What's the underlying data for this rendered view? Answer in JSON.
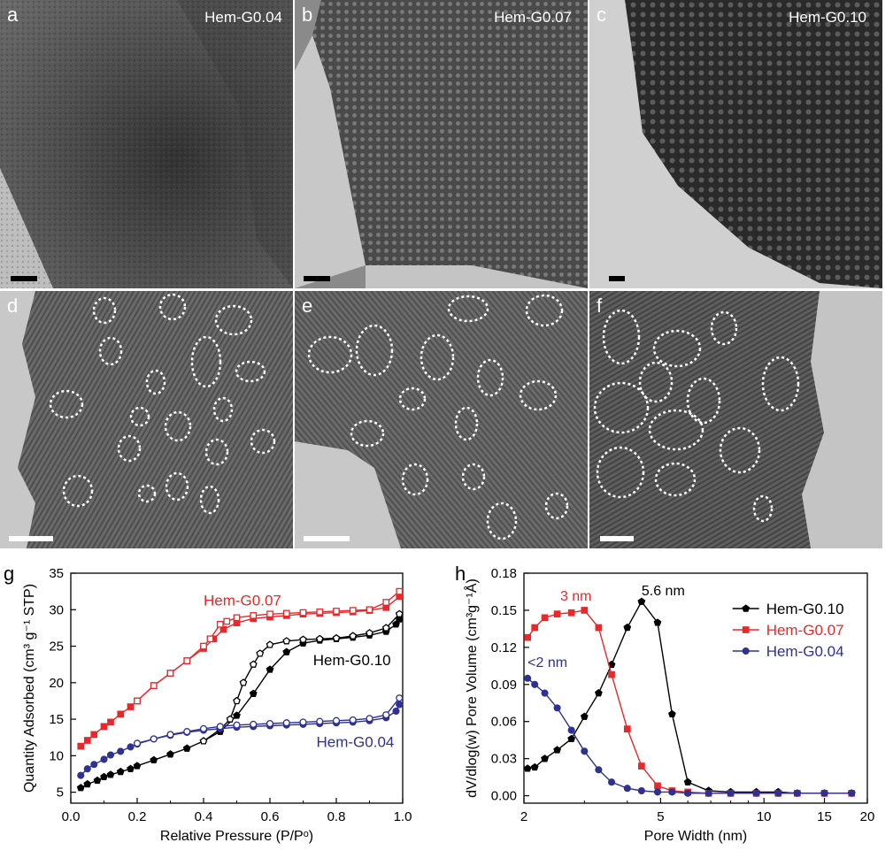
{
  "panels": [
    {
      "label": "a",
      "title": "Hem-G0.04"
    },
    {
      "label": "b",
      "title": "Hem-G0.07"
    },
    {
      "label": "c",
      "title": "Hem-G0.10"
    },
    {
      "label": "d",
      "title": ""
    },
    {
      "label": "e",
      "title": ""
    },
    {
      "label": "f",
      "title": ""
    }
  ],
  "colors": {
    "black": "#000000",
    "red": "#e8282a",
    "blue": "#2e3192"
  },
  "chart_data": [
    {
      "type": "line",
      "panel_label": "g",
      "xlabel": "Relative Pressure (P/Pᵒ)",
      "ylabel": "Quantity Adsorbed (cm³ g⁻¹ STP)",
      "xlim": [
        0,
        1.0
      ],
      "ylim": [
        3.5,
        35
      ],
      "xticks": [
        "0.0",
        "0.2",
        "0.4",
        "0.6",
        "0.8",
        "1.0"
      ],
      "yticks": [
        "5",
        "10",
        "15",
        "20",
        "25",
        "30",
        "35"
      ],
      "annotations": [
        "Hem-G0.07",
        "Hem-G0.10",
        "Hem-G0.04"
      ],
      "series": [
        {
          "name": "Hem-G0.07",
          "color": "#e8282a",
          "marker": "square",
          "branch": "adsorption",
          "x": [
            0.03,
            0.05,
            0.07,
            0.1,
            0.12,
            0.15,
            0.18,
            0.2,
            0.25,
            0.3,
            0.35,
            0.4,
            0.43,
            0.46,
            0.5,
            0.55,
            0.6,
            0.65,
            0.7,
            0.75,
            0.8,
            0.85,
            0.9,
            0.95,
            0.99
          ],
          "y": [
            11.3,
            12.1,
            12.9,
            14.0,
            14.6,
            15.7,
            16.7,
            17.5,
            19.6,
            21.3,
            23.0,
            24.7,
            26.0,
            27.3,
            28.2,
            28.8,
            29.0,
            29.2,
            29.4,
            29.5,
            29.6,
            29.7,
            29.9,
            30.3,
            31.8
          ]
        },
        {
          "name": "Hem-G0.07",
          "color": "#e8282a",
          "marker": "square-open",
          "branch": "desorption",
          "x": [
            0.99,
            0.95,
            0.9,
            0.85,
            0.8,
            0.75,
            0.7,
            0.65,
            0.6,
            0.55,
            0.5,
            0.47,
            0.45,
            0.42,
            0.4,
            0.35,
            0.3,
            0.25,
            0.2
          ],
          "y": [
            32.5,
            31.0,
            30.0,
            29.9,
            29.8,
            29.7,
            29.6,
            29.5,
            29.4,
            29.2,
            28.9,
            28.4,
            28.0,
            26.0,
            25.0,
            23.0,
            21.3,
            19.6,
            17.5
          ]
        },
        {
          "name": "Hem-G0.10",
          "color": "#000000",
          "marker": "pentagon",
          "branch": "adsorption",
          "x": [
            0.03,
            0.05,
            0.08,
            0.1,
            0.12,
            0.15,
            0.18,
            0.2,
            0.25,
            0.3,
            0.35,
            0.4,
            0.45,
            0.5,
            0.55,
            0.6,
            0.65,
            0.7,
            0.75,
            0.8,
            0.85,
            0.9,
            0.95,
            0.98,
            0.99
          ],
          "y": [
            5.6,
            6.1,
            6.6,
            7.1,
            7.4,
            7.8,
            8.2,
            8.6,
            9.4,
            10.2,
            11.0,
            12.0,
            13.3,
            15.5,
            18.5,
            21.8,
            24.2,
            25.4,
            25.8,
            26.0,
            26.2,
            26.5,
            27.0,
            28.0,
            28.7
          ]
        },
        {
          "name": "Hem-G0.10",
          "color": "#000000",
          "marker": "pentagon-open",
          "branch": "desorption",
          "x": [
            0.99,
            0.95,
            0.9,
            0.85,
            0.8,
            0.75,
            0.7,
            0.65,
            0.6,
            0.57,
            0.55,
            0.52,
            0.5,
            0.48,
            0.45,
            0.4
          ],
          "y": [
            29.4,
            27.5,
            26.8,
            26.4,
            26.1,
            26.0,
            25.9,
            25.7,
            25.2,
            24.0,
            22.5,
            20.0,
            17.5,
            15.0,
            13.6,
            12.0
          ]
        },
        {
          "name": "Hem-G0.04",
          "color": "#2e3192",
          "marker": "circle",
          "branch": "adsorption",
          "x": [
            0.03,
            0.05,
            0.07,
            0.1,
            0.12,
            0.15,
            0.18,
            0.2,
            0.25,
            0.3,
            0.35,
            0.4,
            0.45,
            0.5,
            0.55,
            0.6,
            0.65,
            0.7,
            0.75,
            0.8,
            0.85,
            0.9,
            0.95,
            0.98,
            0.99
          ],
          "y": [
            7.3,
            8.2,
            8.8,
            9.5,
            10.1,
            10.6,
            11.2,
            11.6,
            12.3,
            12.8,
            13.2,
            13.5,
            13.7,
            13.9,
            14.0,
            14.1,
            14.2,
            14.3,
            14.4,
            14.5,
            14.6,
            14.8,
            15.2,
            16.1,
            17.0
          ]
        },
        {
          "name": "Hem-G0.04",
          "color": "#2e3192",
          "marker": "circle-open",
          "branch": "desorption",
          "x": [
            0.99,
            0.95,
            0.9,
            0.85,
            0.8,
            0.75,
            0.7,
            0.65,
            0.6,
            0.55,
            0.5,
            0.45,
            0.4,
            0.35,
            0.3,
            0.25,
            0.2
          ],
          "y": [
            17.9,
            15.6,
            15.1,
            14.9,
            14.8,
            14.7,
            14.6,
            14.5,
            14.4,
            14.3,
            14.2,
            14.0,
            13.7,
            13.3,
            12.9,
            12.3,
            11.7
          ]
        }
      ]
    },
    {
      "type": "line",
      "panel_label": "h",
      "xlabel": "Pore Width (nm)",
      "ylabel": "dV/dlog(w) Pore Volume (cm³g⁻¹Å)",
      "xscale": "log",
      "xlim": [
        2,
        20
      ],
      "ylim": [
        -0.006,
        0.18
      ],
      "xticks": [
        "2",
        "5",
        "10",
        "15",
        "20"
      ],
      "yticks": [
        "0.00",
        "0.03",
        "0.06",
        "0.09",
        "0.12",
        "0.15",
        "0.18"
      ],
      "annotations": [
        "3 nm",
        "5.6 nm",
        "<2 nm"
      ],
      "legend": "top-right",
      "series": [
        {
          "name": "Hem-G0.10",
          "color": "#000000",
          "marker": "pentagon",
          "x": [
            2.05,
            2.15,
            2.3,
            2.5,
            2.75,
            3.0,
            3.3,
            3.6,
            4.0,
            4.4,
            4.9,
            5.4,
            6.0,
            6.9,
            8.0,
            9.5,
            11.0,
            12.5,
            15.0,
            18.0
          ],
          "y": [
            0.022,
            0.023,
            0.03,
            0.037,
            0.046,
            0.064,
            0.083,
            0.106,
            0.136,
            0.157,
            0.14,
            0.066,
            0.011,
            0.004,
            0.003,
            0.003,
            0.003,
            0.002,
            0.002,
            0.002
          ]
        },
        {
          "name": "Hem-G0.07",
          "color": "#e8282a",
          "marker": "square",
          "x": [
            2.05,
            2.15,
            2.3,
            2.5,
            2.75,
            3.0,
            3.3,
            3.6,
            4.0,
            4.4,
            4.9,
            5.4,
            6.0,
            6.9,
            8.0,
            9.5,
            11.0,
            12.5,
            15.0,
            18.0
          ],
          "y": [
            0.128,
            0.136,
            0.144,
            0.147,
            0.148,
            0.15,
            0.136,
            0.098,
            0.054,
            0.024,
            0.008,
            0.004,
            0.003,
            0.002,
            0.002,
            0.002,
            0.002,
            0.002,
            0.002,
            0.002
          ]
        },
        {
          "name": "Hem-G0.04",
          "color": "#2e3192",
          "marker": "circle",
          "x": [
            2.05,
            2.15,
            2.3,
            2.5,
            2.75,
            3.0,
            3.3,
            3.6,
            4.0,
            4.4,
            4.9,
            5.4,
            6.0,
            6.9,
            8.0,
            9.5,
            11.0,
            12.5,
            15.0,
            18.0
          ],
          "y": [
            0.095,
            0.09,
            0.083,
            0.071,
            0.053,
            0.036,
            0.021,
            0.011,
            0.006,
            0.004,
            0.003,
            0.003,
            0.002,
            0.002,
            0.002,
            0.002,
            0.002,
            0.002,
            0.002,
            0.002
          ]
        }
      ]
    }
  ]
}
